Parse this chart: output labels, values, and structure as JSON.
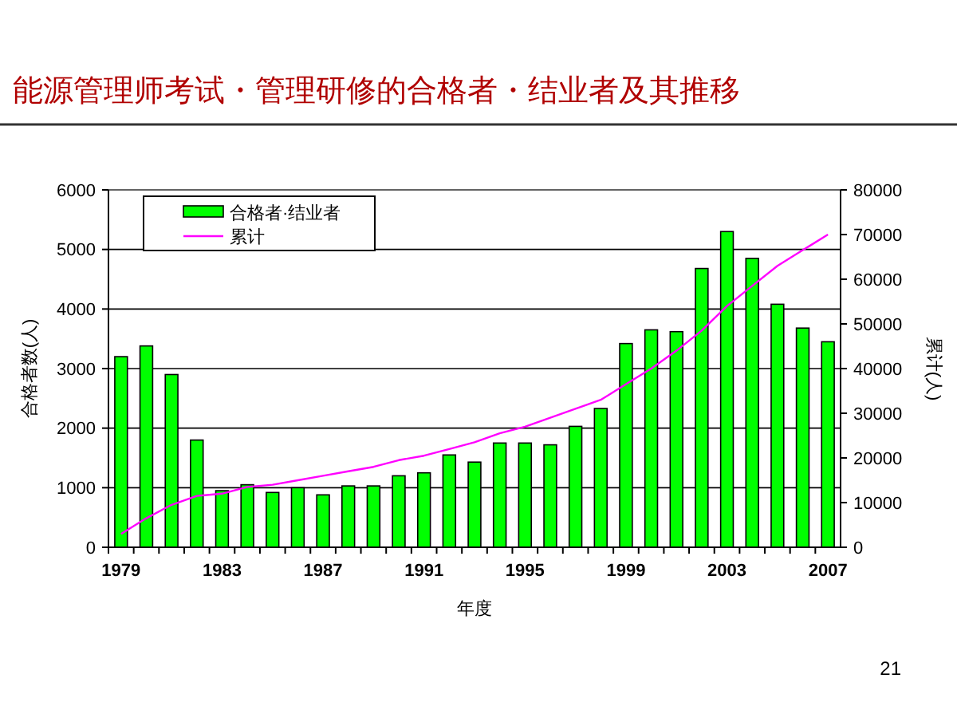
{
  "chart_data": {
    "type": "bar",
    "title": "能源管理师考试・管理研修的合格者・结业者及其推移",
    "xlabel": "年度",
    "ylabel": "合格者数(人)",
    "y2label": "累计(人)",
    "categories": [
      "1979",
      null,
      null,
      null,
      "1983",
      null,
      null,
      null,
      "1987",
      null,
      null,
      null,
      "1991",
      null,
      null,
      null,
      "1995",
      null,
      null,
      null,
      "1999",
      null,
      null,
      null,
      "2003",
      null,
      null,
      null,
      "2007"
    ],
    "series": [
      {
        "name": "合格者·结业者",
        "color": "#00ff00",
        "values": [
          3200,
          3380,
          2900,
          1800,
          950,
          1050,
          920,
          1000,
          880,
          1030,
          1030,
          1200,
          1250,
          1550,
          1430,
          1750,
          1750,
          1720,
          2030,
          2330,
          3420,
          3650,
          3620,
          4680,
          5300,
          4850,
          4080,
          3680,
          3450
        ]
      },
      {
        "name": "累计",
        "type": "line",
        "axis": "y2",
        "color": "#ff00ff",
        "values": [
          3000,
          6500,
          9500,
          11500,
          12000,
          13500,
          14000,
          15000,
          16000,
          17000,
          18000,
          19500,
          20500,
          22000,
          23500,
          25500,
          27000,
          29000,
          31000,
          33000,
          36500,
          40000,
          44000,
          48500,
          54000,
          58500,
          63000,
          66500,
          70000
        ]
      }
    ],
    "ylim": [
      0,
      6000
    ],
    "yticks": [
      0,
      1000,
      2000,
      3000,
      4000,
      5000,
      6000
    ],
    "y2lim": [
      0,
      80000
    ],
    "y2ticks": [
      0,
      10000,
      20000,
      30000,
      40000,
      50000,
      60000,
      70000,
      80000
    ],
    "grid": "y",
    "legend": "top left",
    "marker": "none",
    "line_style": "solid",
    "annotations": [
      "21"
    ]
  }
}
